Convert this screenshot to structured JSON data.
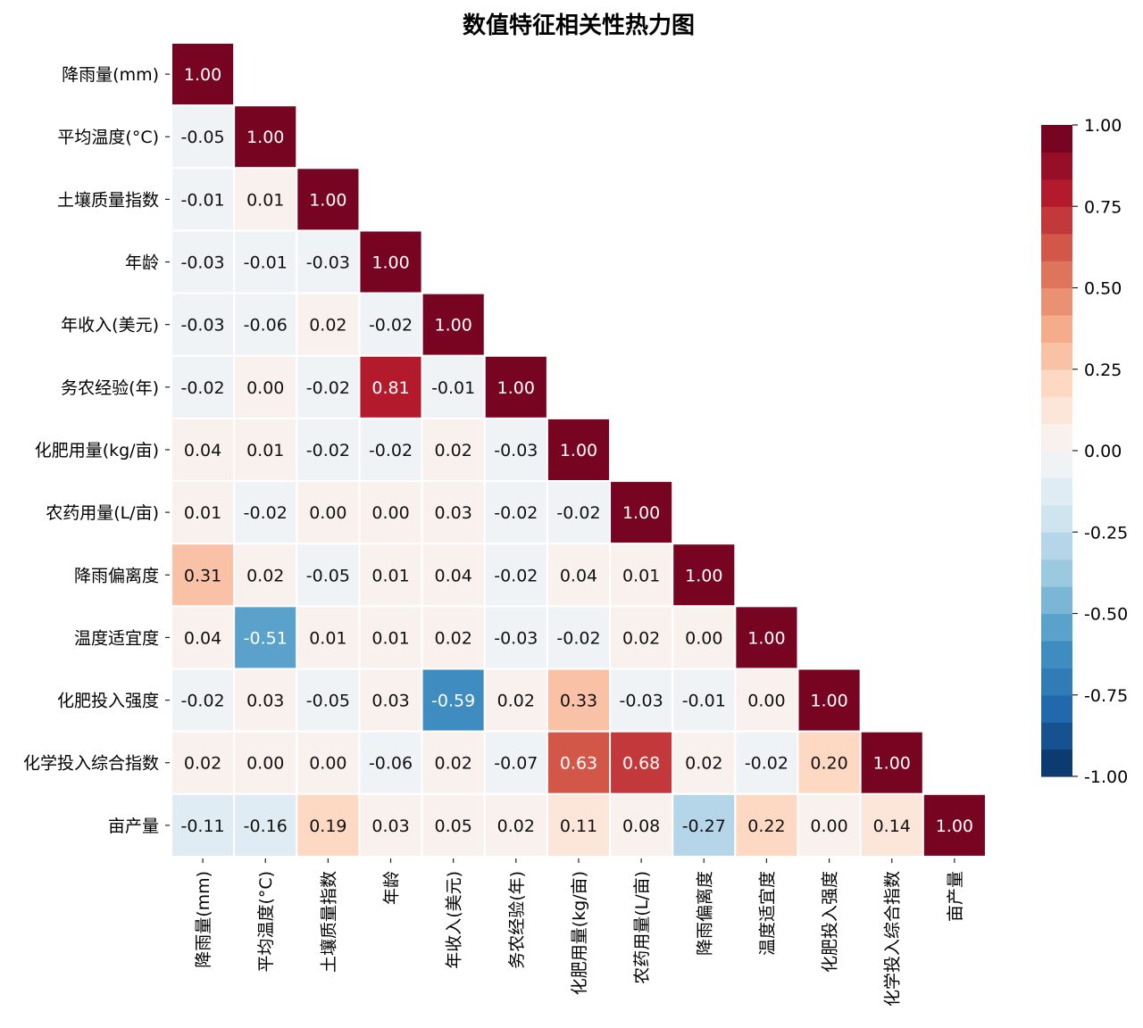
{
  "chart_data": {
    "type": "heatmap",
    "title": "数值特征相关性热力图",
    "labels": [
      "降雨量(mm)",
      "平均温度(°C)",
      "土壤质量指数",
      "年龄",
      "年收入(美元)",
      "务农经验(年)",
      "化肥用量(kg/亩)",
      "农药用量(L/亩)",
      "降雨偏离度",
      "温度适宜度",
      "化肥投入强度",
      "化学投入综合指数",
      "亩产量"
    ],
    "mask": "upper-triangle",
    "matrix": [
      [
        1.0
      ],
      [
        -0.05,
        1.0
      ],
      [
        -0.01,
        0.01,
        1.0
      ],
      [
        -0.03,
        -0.01,
        -0.03,
        1.0
      ],
      [
        -0.03,
        -0.06,
        0.02,
        -0.02,
        1.0
      ],
      [
        -0.02,
        -0.0,
        -0.02,
        0.81,
        -0.01,
        1.0
      ],
      [
        0.04,
        0.01,
        -0.02,
        -0.02,
        0.02,
        -0.03,
        1.0
      ],
      [
        0.01,
        -0.02,
        0.0,
        0.0,
        0.03,
        -0.02,
        -0.02,
        1.0
      ],
      [
        0.31,
        0.02,
        -0.05,
        0.01,
        0.04,
        -0.02,
        0.04,
        0.01,
        1.0
      ],
      [
        0.04,
        -0.51,
        0.01,
        0.01,
        0.02,
        -0.03,
        -0.02,
        0.02,
        -0.0,
        1.0
      ],
      [
        -0.02,
        0.03,
        -0.05,
        0.03,
        -0.59,
        0.02,
        0.33,
        -0.03,
        -0.01,
        0.0,
        1.0
      ],
      [
        0.02,
        0.0,
        -0.0,
        -0.06,
        0.02,
        -0.07,
        0.63,
        0.68,
        0.02,
        -0.02,
        0.2,
        1.0
      ],
      [
        -0.11,
        -0.16,
        0.19,
        0.03,
        0.05,
        0.02,
        0.11,
        0.08,
        -0.27,
        0.22,
        0.0,
        0.14,
        1.0
      ]
    ],
    "value_format": "0.00",
    "colormap": "RdBu_r",
    "vmin": -1.0,
    "vmax": 1.0,
    "colorbar": {
      "position": "right",
      "ticks": [
        "1.00",
        "0.75",
        "0.50",
        "0.25",
        "0.00",
        "-0.25",
        "-0.50",
        "-0.75",
        "-1.00"
      ],
      "tick_values": [
        1.0,
        0.75,
        0.5,
        0.25,
        0.0,
        -0.25,
        -0.5,
        -0.75,
        -1.0
      ],
      "levels": 24
    },
    "colors": {
      "stops": [
        "#053061",
        "#2166ac",
        "#4393c3",
        "#92c5de",
        "#d1e5f0",
        "#f7f7f7",
        "#fddbc7",
        "#f4a582",
        "#d6604d",
        "#b2182b",
        "#67001f"
      ],
      "cell_border": "#ffffff",
      "text_dark": "#111111",
      "text_light": "#ffffff"
    }
  }
}
